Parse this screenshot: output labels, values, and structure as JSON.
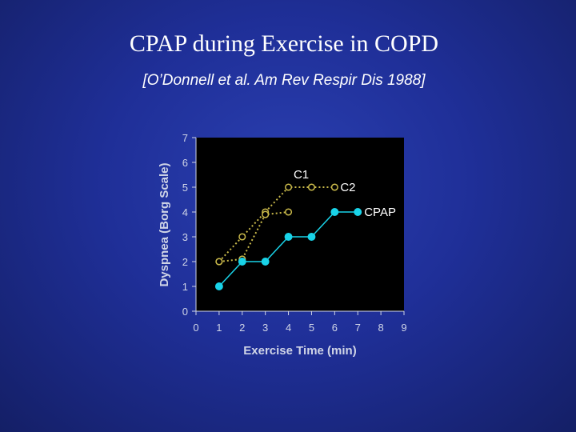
{
  "slide": {
    "title": "CPAP during Exercise in COPD",
    "subtitle": "[O’Donnell et al.  Am Rev Respir Dis 1988]"
  },
  "chart_data": {
    "type": "line",
    "title": "",
    "xlabel": "Exercise Time (min)",
    "ylabel": "Dyspnea (Borg Scale)",
    "xlim": [
      0,
      9
    ],
    "ylim": [
      0,
      7
    ],
    "xticks": [
      0,
      1,
      2,
      3,
      4,
      5,
      6,
      7,
      8,
      9
    ],
    "yticks": [
      0,
      1,
      2,
      3,
      4,
      5,
      6,
      7
    ],
    "grid": false,
    "plot_background": "#000000",
    "series": [
      {
        "name": "C1",
        "color": "#c9b94a",
        "style": "dotted",
        "marker": "open-circle",
        "x": [
          1,
          2,
          3,
          4,
          5,
          6
        ],
        "y": [
          2,
          3,
          4,
          5,
          5,
          5
        ]
      },
      {
        "name": "C2",
        "color": "#c9b94a",
        "style": "dotted",
        "marker": "open-circle",
        "x": [
          1,
          2,
          3,
          4
        ],
        "y": [
          2,
          2.1,
          3.9,
          4
        ]
      },
      {
        "name": "CPAP",
        "color": "#19d3e8",
        "style": "solid",
        "marker": "filled-circle",
        "x": [
          1,
          2,
          3,
          4,
          5,
          6,
          7
        ],
        "y": [
          1,
          2,
          2,
          3,
          3,
          4,
          4
        ]
      }
    ]
  }
}
